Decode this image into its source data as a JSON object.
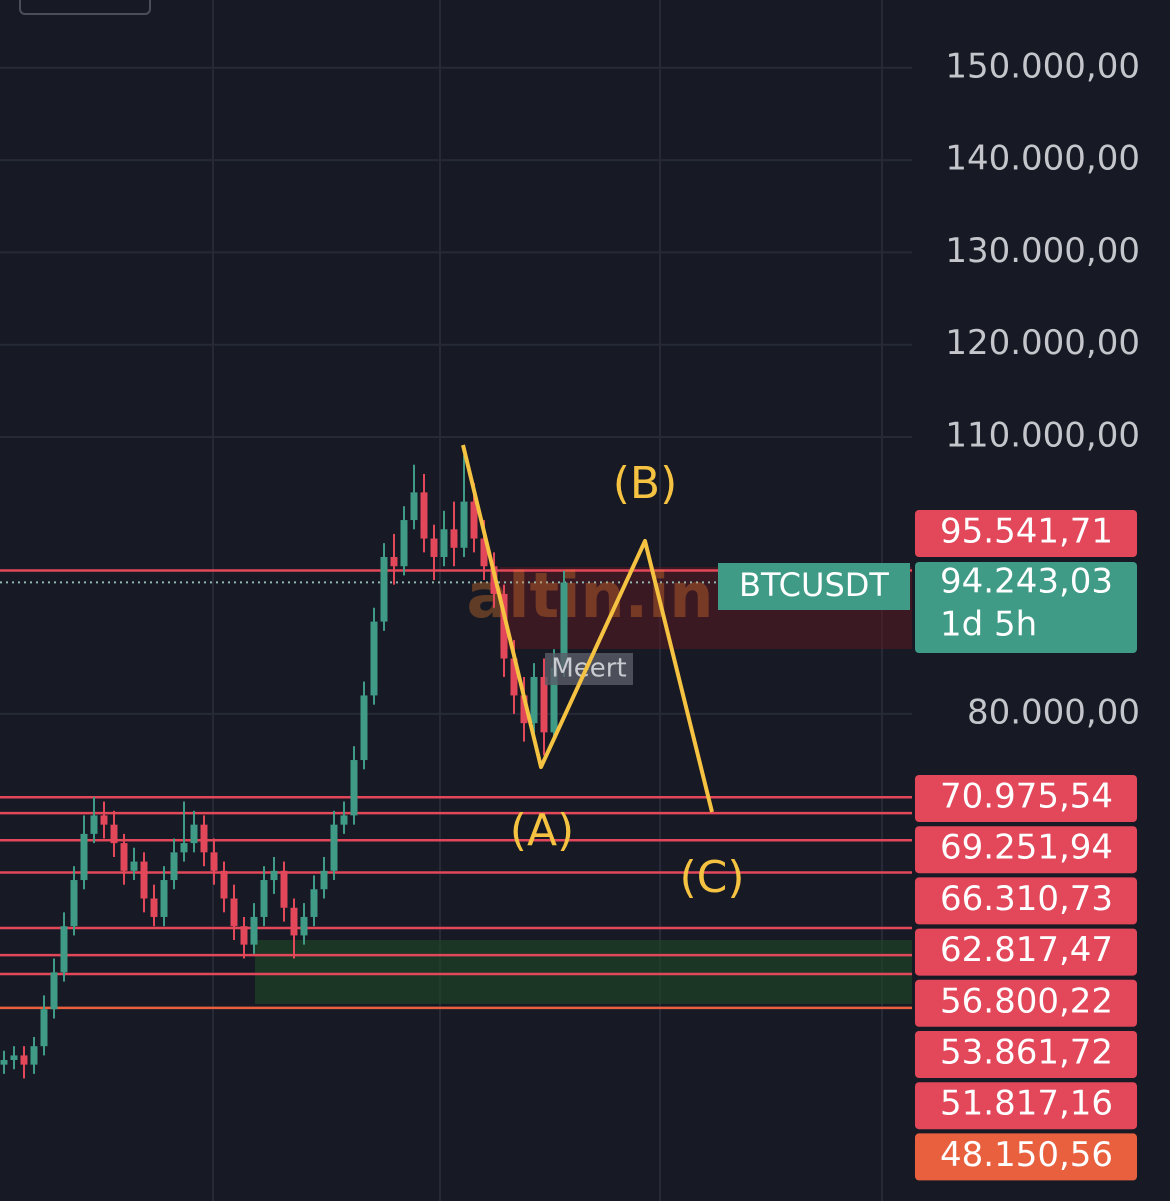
{
  "chart_data": {
    "type": "candlestick",
    "symbol": "BTCUSDT",
    "countdown": "1d 5h",
    "categories": [
      null,
      null,
      null,
      null,
      null,
      null,
      null,
      null,
      null,
      null,
      null,
      null,
      null,
      null,
      null,
      null,
      null,
      null,
      null,
      null,
      null,
      null,
      null,
      null,
      null,
      null,
      null,
      null,
      null,
      null,
      null,
      null,
      null,
      null,
      null,
      null,
      null,
      null,
      null,
      null,
      null,
      null,
      null,
      null,
      null,
      null,
      null,
      null,
      null,
      null,
      null,
      null,
      null,
      null,
      null,
      null,
      null
    ],
    "open": [
      42000,
      42500,
      43000,
      42000,
      44000,
      48000,
      52000,
      57000,
      62000,
      67000,
      69000,
      68000,
      66000,
      63000,
      64000,
      60000,
      58000,
      62000,
      65000,
      66000,
      68000,
      65000,
      63000,
      60000,
      57000,
      55000,
      58000,
      62000,
      63000,
      59000,
      56000,
      58000,
      61000,
      63000,
      68000,
      69000,
      75000,
      82000,
      90000,
      97000,
      96000,
      101000,
      104000,
      99000,
      97000,
      100000,
      98000,
      103000,
      99000,
      96000,
      93000,
      86000,
      82000,
      79000,
      84000,
      78000,
      85000
    ],
    "high": [
      43500,
      44000,
      44000,
      45000,
      49500,
      53500,
      58500,
      63500,
      69000,
      71000,
      70500,
      69500,
      67000,
      65500,
      65000,
      61500,
      63500,
      66500,
      70500,
      69500,
      69000,
      66500,
      64000,
      61500,
      58000,
      59500,
      63500,
      64500,
      64000,
      60000,
      59500,
      62500,
      64500,
      69500,
      70500,
      76500,
      83500,
      91500,
      98500,
      99500,
      102500,
      107000,
      106000,
      100500,
      102000,
      103000,
      108000,
      105000,
      101000,
      97500,
      94000,
      88000,
      84000,
      85500,
      86000,
      87000,
      95500
    ],
    "low": [
      41000,
      41500,
      40500,
      41000,
      43000,
      47000,
      51000,
      56000,
      61000,
      66000,
      66500,
      64500,
      61500,
      62000,
      58500,
      57000,
      57000,
      61000,
      64000,
      65000,
      63500,
      61500,
      58500,
      55500,
      53500,
      54000,
      57000,
      60500,
      57500,
      53500,
      55000,
      57000,
      60000,
      62000,
      67000,
      68000,
      74000,
      81000,
      89000,
      94000,
      95000,
      100000,
      97500,
      94500,
      96000,
      96000,
      97000,
      97500,
      94500,
      91500,
      84000,
      80000,
      77000,
      77500,
      75500,
      77000,
      84000
    ],
    "close": [
      42500,
      43000,
      42000,
      44000,
      48000,
      52000,
      57000,
      62000,
      67000,
      69000,
      68000,
      66000,
      63000,
      64000,
      60000,
      58000,
      62000,
      65000,
      66000,
      68000,
      65000,
      63000,
      60000,
      57000,
      55000,
      58000,
      62000,
      63000,
      59000,
      56000,
      58000,
      61000,
      63000,
      68000,
      69000,
      75000,
      82000,
      90000,
      97000,
      96000,
      101000,
      104000,
      99000,
      97000,
      100000,
      98000,
      103000,
      99000,
      96000,
      93000,
      86000,
      82000,
      79000,
      84000,
      78000,
      85000,
      94243.03
    ],
    "up_color": "#3f9b86",
    "down_color": "#e2475a",
    "ylim": [
      27226,
      157346
    ],
    "yticks": [
      {
        "value": 150000,
        "label": "150.000,00"
      },
      {
        "value": 140000,
        "label": "140.000,00"
      },
      {
        "value": 130000,
        "label": "130.000,00"
      },
      {
        "value": 120000,
        "label": "120.000,00"
      },
      {
        "value": 110000,
        "label": "110.000,00"
      },
      {
        "value": 80000,
        "label": "80.000,00"
      }
    ],
    "grid": true,
    "last_price": {
      "value": 94243.03,
      "label": "94.243,03"
    },
    "levels": [
      {
        "value": 95541.71,
        "label": "95.541,71"
      },
      {
        "value": 70975.54,
        "label": "70.975,54"
      },
      {
        "value": 69251.94,
        "label": "69.251,94"
      },
      {
        "value": 66310.73,
        "label": "66.310,73"
      },
      {
        "value": 62817.47,
        "label": "62.817,47"
      },
      {
        "value": 56800.22,
        "label": "56.800,22"
      },
      {
        "value": 53861.72,
        "label": "53.861,72"
      },
      {
        "value": 51817.16,
        "label": "51.817,16"
      },
      {
        "value": 48150.56,
        "label": "48.150,56"
      }
    ],
    "annotations": [
      "(A)",
      "(B)",
      "(C)"
    ],
    "watermark": "altin.in",
    "marker_label": "Meert"
  }
}
